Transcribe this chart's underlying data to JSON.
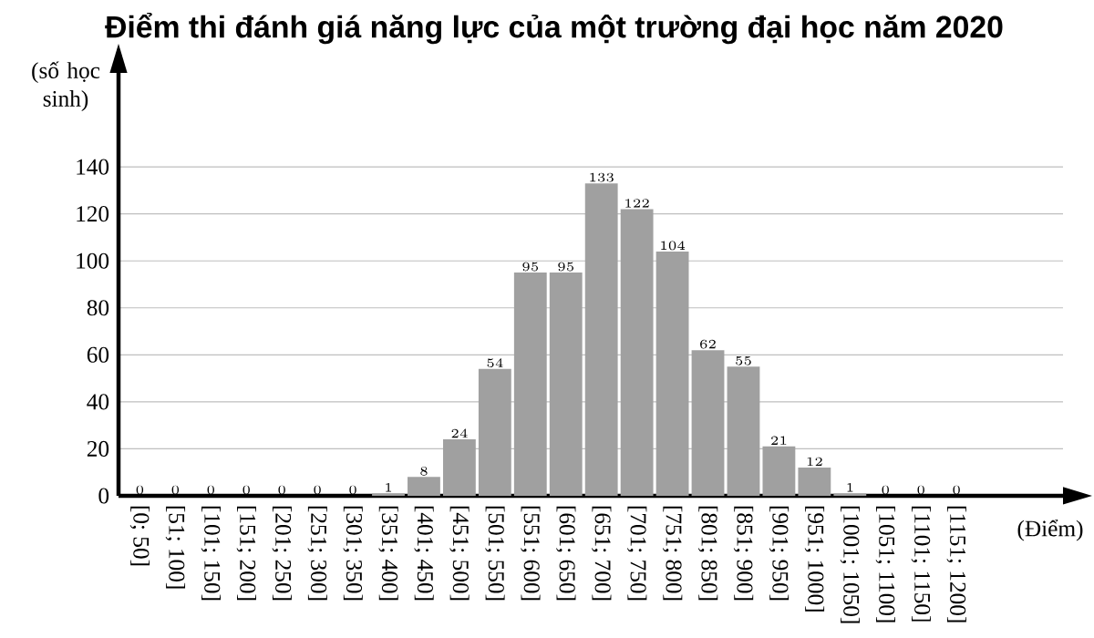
{
  "chart_data": {
    "type": "bar",
    "title": "Điểm thi đánh giá năng lực của một trường đại học năm 2020",
    "xlabel": "(Điểm)",
    "ylabel": "(số học sinh)",
    "categories": [
      "[0; 50]",
      "[51; 100]",
      "[101; 150]",
      "[151; 200]",
      "[201; 250]",
      "[251; 300]",
      "[301; 350]",
      "[351; 400]",
      "[401; 450]",
      "[451; 500]",
      "[501; 550]",
      "[551; 600]",
      "[601; 650]",
      "[651; 700]",
      "[701; 750]",
      "[751; 800]",
      "[801; 850]",
      "[851; 900]",
      "[901; 950]",
      "[951; 1000]",
      "[1001; 1050]",
      "[1051; 1100]",
      "[1101; 1150]",
      "[1151; 1200]"
    ],
    "values": [
      0,
      0,
      0,
      0,
      0,
      0,
      0,
      1,
      8,
      24,
      54,
      95,
      95,
      133,
      122,
      104,
      62,
      55,
      21,
      12,
      1,
      0,
      0,
      0
    ],
    "color": "#a0a0a0",
    "ylim": [
      0,
      180
    ],
    "yticks": [
      0,
      20,
      40,
      60,
      80,
      100,
      120,
      140
    ],
    "grid": "y",
    "data_labels": true
  }
}
